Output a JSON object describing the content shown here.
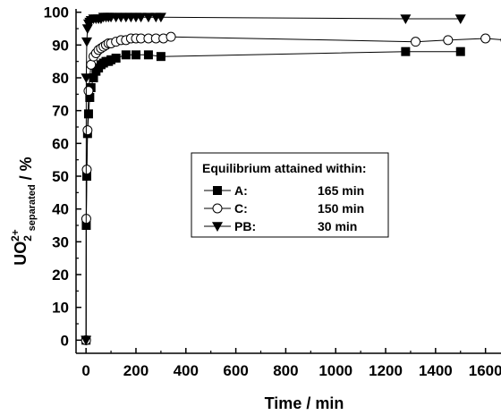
{
  "chart_data": {
    "type": "line",
    "xlabel": "Time / min",
    "ylabel": {
      "main": "UO",
      "subscript": "2",
      "superscript": "2+",
      "subscript_label": "separated",
      "unit": " / %"
    },
    "xlim": [
      -40,
      1680
    ],
    "ylim": [
      -4,
      101
    ],
    "x_ticks": [
      0,
      200,
      400,
      600,
      800,
      1000,
      1200,
      1400,
      1600
    ],
    "x_tick_labels": [
      "0",
      "200",
      "400",
      "600",
      "800",
      "1000",
      "1200",
      "1400",
      "1600"
    ],
    "y_ticks": [
      0,
      10,
      20,
      30,
      40,
      50,
      60,
      70,
      80,
      90,
      100
    ],
    "y_tick_labels": [
      "0",
      "10",
      "20",
      "30",
      "40",
      "50",
      "60",
      "70",
      "80",
      "90",
      "100"
    ],
    "grid": false,
    "legend": {
      "title": "Equilibrium attained within:",
      "placement": "center",
      "entries": [
        {
          "series": "A",
          "label": "A:",
          "value": "165 min"
        },
        {
          "series": "C",
          "label": "C:",
          "value": "150 min"
        },
        {
          "series": "PB",
          "label": "PB:",
          "value": "30 min"
        }
      ]
    },
    "series": [
      {
        "name": "A",
        "marker": "square-filled",
        "x": [
          0,
          1,
          3,
          6,
          10,
          15,
          20,
          30,
          40,
          50,
          60,
          70,
          80,
          90,
          100,
          120,
          160,
          200,
          250,
          300,
          1280,
          1500
        ],
        "y": [
          0,
          35,
          50,
          63,
          69,
          74,
          77,
          80,
          82,
          83,
          84,
          84.5,
          85,
          85,
          85.5,
          86,
          87,
          87,
          87,
          86.5,
          88,
          88
        ]
      },
      {
        "name": "C",
        "marker": "circle-open",
        "x": [
          0,
          1,
          3,
          6,
          10,
          20,
          30,
          40,
          50,
          60,
          70,
          80,
          90,
          100,
          120,
          140,
          160,
          180,
          200,
          220,
          250,
          280,
          310,
          340,
          1320,
          1450,
          1600,
          1680
        ],
        "y": [
          0,
          37,
          52,
          64,
          76,
          84,
          86.5,
          87.5,
          88.5,
          89,
          89.5,
          90,
          90.5,
          90.5,
          91,
          91.5,
          91.5,
          92,
          92,
          92,
          92,
          92,
          92,
          92.5,
          91,
          91.5,
          92,
          91.5
        ]
      },
      {
        "name": "PB",
        "marker": "triangle-down-filled",
        "x": [
          0,
          1,
          3,
          6,
          10,
          15,
          20,
          30,
          40,
          50,
          60,
          70,
          80,
          90,
          100,
          120,
          140,
          160,
          180,
          200,
          220,
          250,
          280,
          300,
          1280,
          1500
        ],
        "y": [
          0,
          80,
          91,
          95,
          96.5,
          97,
          97.5,
          98,
          98,
          98,
          98,
          98.5,
          98.5,
          98.5,
          98.5,
          98.5,
          98.5,
          98.5,
          98.5,
          98.5,
          98.5,
          98.5,
          98.5,
          98.5,
          98,
          98
        ]
      }
    ]
  }
}
